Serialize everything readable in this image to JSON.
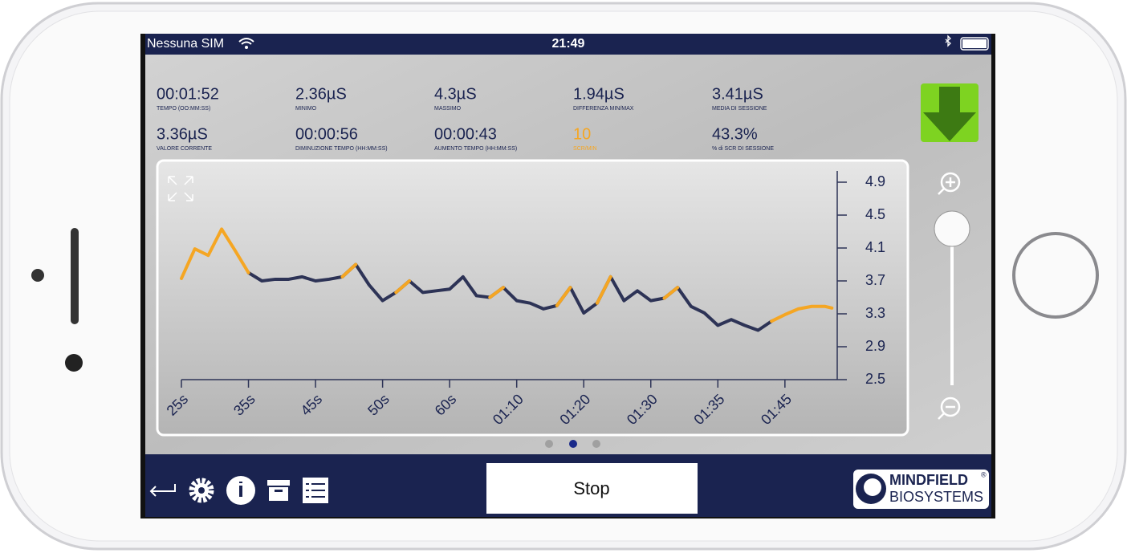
{
  "status_bar": {
    "carrier": "Nessuna SIM",
    "time": "21:49"
  },
  "stats": [
    {
      "value": "00:01:52",
      "label": "TEMPO (OO:MM:SS)"
    },
    {
      "value": "2.36µS",
      "label": "MINIMO"
    },
    {
      "value": "4.3µS",
      "label": "MASSIMO"
    },
    {
      "value": "1.94µS",
      "label": "DIFFERENZA MIN/MAX"
    },
    {
      "value": "3.41µS",
      "label": "MEDIA DI SESSIONE"
    },
    {
      "value": "3.36µS",
      "label": "VALORE CORRENTE"
    },
    {
      "value": "00:00:56",
      "label": "DIMINUZIONE TEMPO (HH:MM:SS)"
    },
    {
      "value": "00:00:43",
      "label": "AUMENTO TEMPO (HH:MM:SS)"
    },
    {
      "value": "10",
      "label": "SCR/MIN",
      "color": "#f5a623"
    },
    {
      "value": "43.3%",
      "label": "% di SCR DI SESSIONE"
    }
  ],
  "chart_data": {
    "type": "line",
    "x": [
      0,
      0.2,
      0.4,
      0.6,
      0.8,
      1.0,
      1.2,
      1.4,
      1.6,
      1.8,
      2.0,
      2.2,
      2.4,
      2.6,
      2.8,
      3.0,
      3.2,
      3.4,
      3.6,
      3.8,
      4.0,
      4.2,
      4.4,
      4.6,
      4.8,
      5.0,
      5.2,
      5.4,
      5.6,
      5.8,
      6.0,
      6.2,
      6.4,
      6.6,
      6.8,
      7.0,
      7.2,
      7.4,
      7.6,
      7.8,
      8.0,
      8.2,
      8.4,
      8.6,
      8.8,
      9.0,
      9.2,
      9.4,
      9.6,
      9.7
    ],
    "series": [
      {
        "color": "#2d3356",
        "values": [
          null,
          null,
          null,
          null,
          null,
          3.8,
          3.7,
          3.72,
          3.72,
          3.75,
          3.7,
          3.72,
          3.75,
          3.9,
          3.65,
          3.46,
          3.56,
          3.7,
          3.56,
          3.58,
          3.6,
          3.75,
          3.52,
          3.5,
          3.62,
          3.46,
          3.43,
          3.36,
          3.4,
          3.62,
          3.31,
          3.43,
          3.75,
          3.46,
          3.58,
          3.46,
          3.49,
          3.62,
          3.39,
          3.31,
          3.16,
          3.23,
          3.16,
          3.1,
          3.21,
          null,
          null,
          null,
          null,
          null
        ]
      },
      {
        "color": "#f5a623",
        "values": [
          3.73,
          4.09,
          4.01,
          4.33,
          4.07,
          3.8,
          null,
          null,
          null,
          null,
          null,
          null,
          3.75,
          3.9,
          null,
          null,
          3.56,
          3.7,
          null,
          null,
          null,
          null,
          null,
          3.5,
          3.62,
          null,
          null,
          null,
          3.4,
          3.62,
          null,
          3.43,
          3.75,
          null,
          null,
          null,
          3.49,
          3.62,
          null,
          null,
          null,
          null,
          null,
          null,
          3.21,
          3.29,
          3.36,
          3.39,
          3.39,
          3.37
        ]
      }
    ],
    "xlim": [
      0,
      9.78
    ],
    "xticks": [
      {
        "value": 0,
        "label": "25s"
      },
      {
        "value": 1,
        "label": "35s"
      },
      {
        "value": 2,
        "label": "45s"
      },
      {
        "value": 3,
        "label": "50s"
      },
      {
        "value": 4,
        "label": "60s"
      },
      {
        "value": 5,
        "label": "01:10"
      },
      {
        "value": 6,
        "label": "01:20"
      },
      {
        "value": 7,
        "label": "01:30"
      },
      {
        "value": 8,
        "label": "01:35"
      },
      {
        "value": 9,
        "label": "01:45"
      }
    ],
    "ylim": [
      2.5,
      4.9
    ],
    "yticks": [
      2.5,
      2.9,
      3.3,
      3.7,
      4.1,
      4.5,
      4.9
    ]
  },
  "toolbar": {
    "button": "Stop",
    "logo_top": "MINDFIELD",
    "logo_mark": "®",
    "logo_bottom": "BIOSYSTEMS"
  }
}
